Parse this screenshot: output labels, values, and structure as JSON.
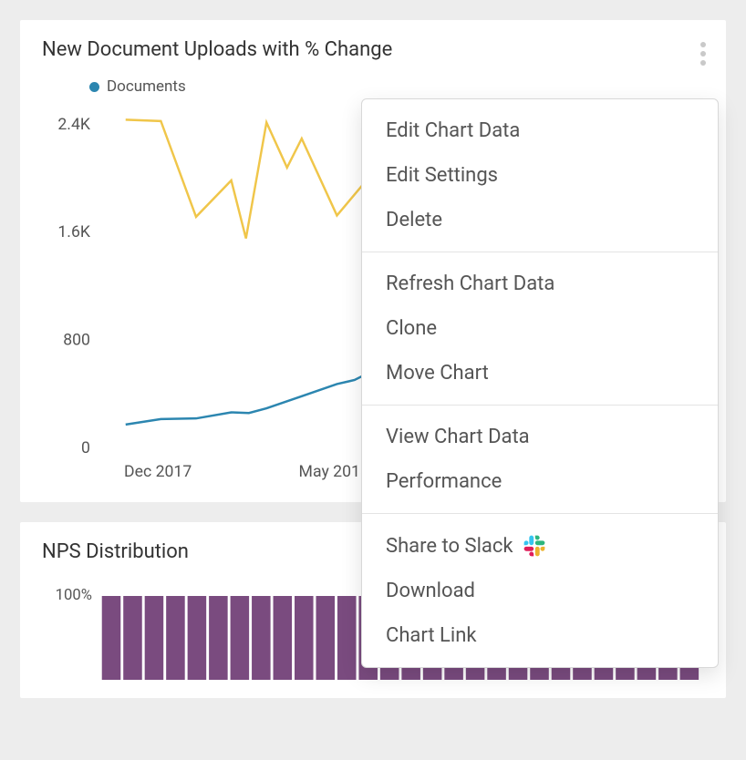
{
  "chart1": {
    "title": "New Document Uploads with % Change",
    "legend": {
      "label": "Documents",
      "color": "#2c86b0"
    },
    "type": "line",
    "y_axis": {
      "ticks": [
        {
          "value": 0,
          "label": "0"
        },
        {
          "value": 800,
          "label": "800"
        },
        {
          "value": 1600,
          "label": "1.6K"
        },
        {
          "value": 2400,
          "label": "2.4K"
        }
      ],
      "min": 0,
      "max": 2500
    },
    "x_axis": {
      "labels": [
        "Dec 2017",
        "May 2018"
      ],
      "label_positions": [
        0.1,
        0.4
      ]
    },
    "series_blue": {
      "color": "#2c86b0",
      "stroke_width": 3,
      "points": [
        [
          0.045,
          170
        ],
        [
          0.105,
          210
        ],
        [
          0.165,
          215
        ],
        [
          0.225,
          260
        ],
        [
          0.255,
          255
        ],
        [
          0.285,
          290
        ],
        [
          0.345,
          380
        ],
        [
          0.405,
          470
        ],
        [
          0.435,
          500
        ],
        [
          0.465,
          565
        ],
        [
          0.525,
          600
        ],
        [
          0.585,
          700
        ],
        [
          0.645,
          750
        ],
        [
          0.705,
          780
        ]
      ]
    },
    "series_yellow": {
      "color": "#f0c64a",
      "stroke_width": 2.5,
      "points": [
        [
          0.045,
          2430
        ],
        [
          0.105,
          2420
        ],
        [
          0.165,
          1710
        ],
        [
          0.225,
          1980
        ],
        [
          0.25,
          1550
        ],
        [
          0.285,
          2410
        ],
        [
          0.32,
          2075
        ],
        [
          0.345,
          2290
        ],
        [
          0.405,
          1720
        ],
        [
          0.465,
          2030
        ],
        [
          0.525,
          1965
        ],
        [
          0.585,
          1960
        ],
        [
          0.645,
          1990
        ],
        [
          0.705,
          1980
        ]
      ]
    },
    "background_color": "#ffffff"
  },
  "chart2": {
    "title": "NPS Distribution",
    "type": "stacked-bar",
    "pct_label": "100%",
    "bar_color": "#7a4b7f",
    "bar_count": 28,
    "background_color": "#ffffff"
  },
  "menu": {
    "groups": [
      {
        "items": [
          {
            "name": "edit-chart-data",
            "label": "Edit Chart Data"
          },
          {
            "name": "edit-settings",
            "label": "Edit Settings"
          },
          {
            "name": "delete",
            "label": "Delete"
          }
        ]
      },
      {
        "items": [
          {
            "name": "refresh-chart-data",
            "label": "Refresh Chart Data"
          },
          {
            "name": "clone",
            "label": "Clone"
          },
          {
            "name": "move-chart",
            "label": "Move Chart"
          }
        ]
      },
      {
        "items": [
          {
            "name": "view-chart-data",
            "label": "View Chart Data"
          },
          {
            "name": "performance",
            "label": "Performance"
          }
        ]
      },
      {
        "items": [
          {
            "name": "share-to-slack",
            "label": "Share to Slack",
            "icon": "slack"
          },
          {
            "name": "download",
            "label": "Download"
          },
          {
            "name": "chart-link",
            "label": "Chart Link"
          }
        ]
      }
    ]
  },
  "colors": {
    "page_bg": "#ededed",
    "text_primary": "#333333",
    "text_secondary": "#555555",
    "menu_border": "#d8d8d8",
    "kebab": "#c9c9c9"
  }
}
